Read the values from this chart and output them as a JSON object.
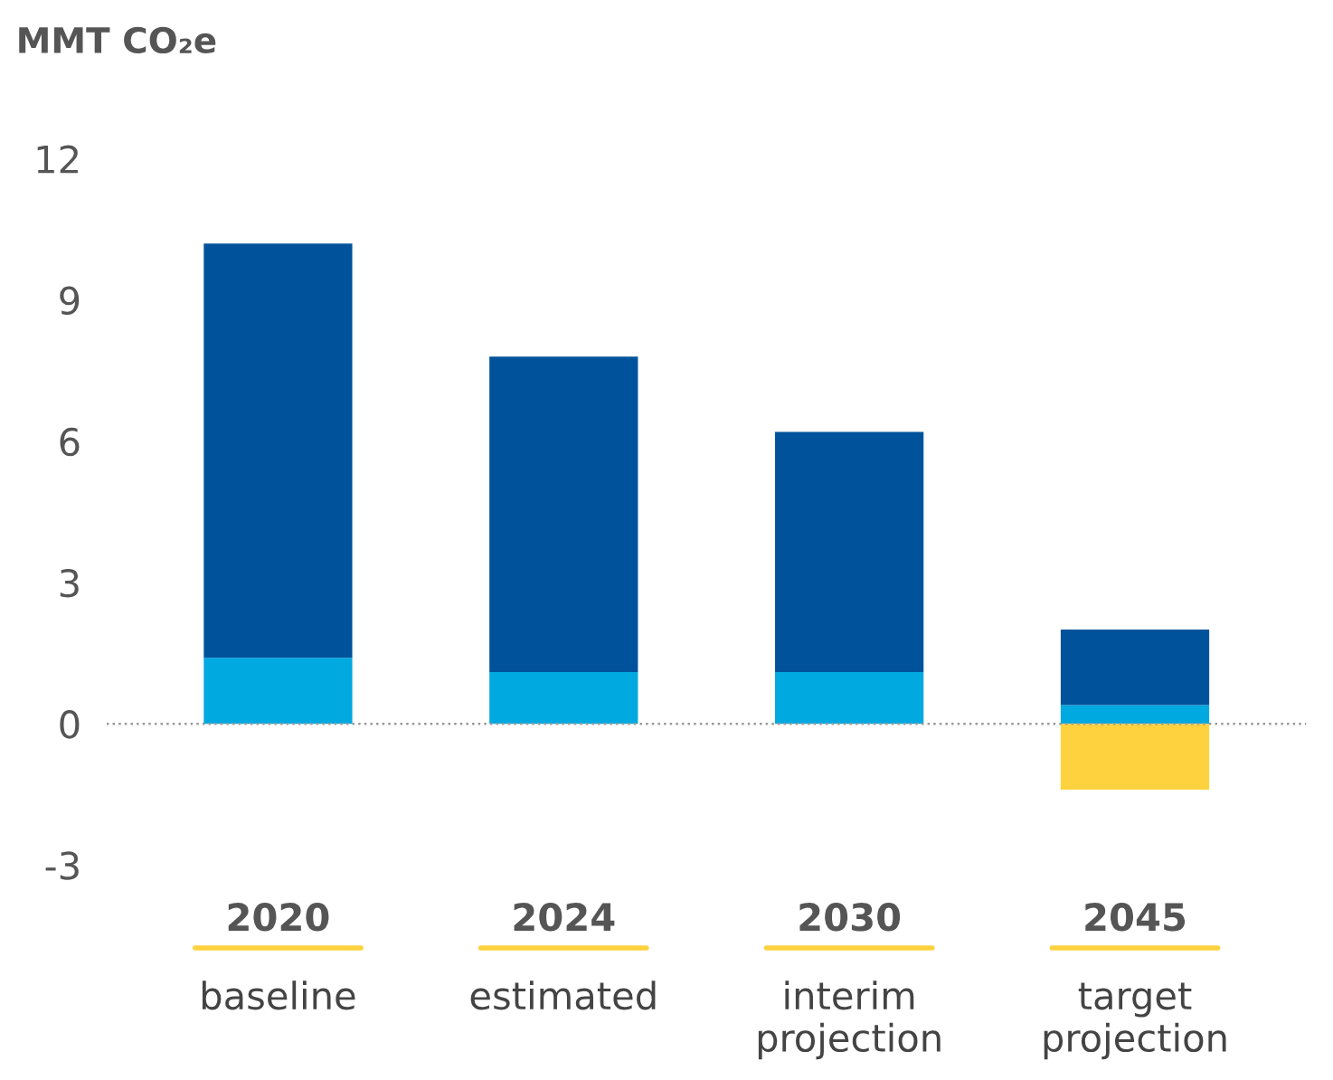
{
  "chart_data": {
    "type": "bar",
    "stacked": true,
    "ylabel": "MMT CO₂e",
    "categories": [
      "2020\nbaseline",
      "2024\nestimated",
      "2030\ninterim\nprojection",
      "2045\ntarget\nprojection"
    ],
    "series": [
      {
        "color": "#00a9e0",
        "values": [
          1.4,
          1.1,
          1.1,
          0.4
        ]
      },
      {
        "color": "#00539b",
        "values": [
          8.8,
          6.7,
          5.1,
          1.6
        ]
      },
      {
        "color": "#fdd23e",
        "values": [
          null,
          null,
          null,
          -1.4
        ]
      }
    ],
    "ylim": [
      -3,
      12
    ],
    "yticks": [
      -3,
      0,
      3,
      6,
      9,
      12
    ],
    "ref_lines": [
      {
        "axis": "y",
        "value": 0,
        "color": "#999999",
        "line_style": "dotted"
      }
    ],
    "grid": false,
    "legend": false
  }
}
